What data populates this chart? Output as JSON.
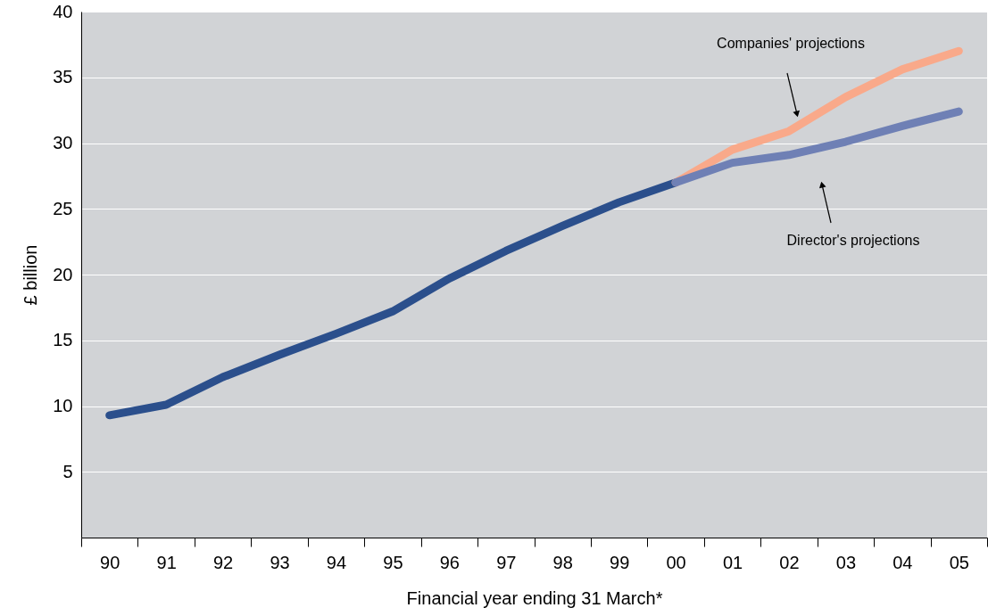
{
  "chart_data": {
    "type": "line",
    "xlabel": "Financial year ending 31 March*",
    "ylabel": "£ billion",
    "categories": [
      "90",
      "91",
      "92",
      "93",
      "94",
      "95",
      "96",
      "97",
      "98",
      "99",
      "00",
      "01",
      "02",
      "03",
      "04",
      "05"
    ],
    "series": [
      {
        "color": "#2b4f8c",
        "values": [
          9.3,
          10.1,
          12.2,
          13.9,
          15.5,
          17.2,
          19.7,
          21.8,
          23.7,
          25.5,
          27.0,
          null,
          null,
          null,
          null,
          null
        ]
      },
      {
        "color": "#f9a98a",
        "values": [
          null,
          null,
          null,
          null,
          null,
          null,
          null,
          null,
          null,
          null,
          27.0,
          29.5,
          30.9,
          33.5,
          35.6,
          37.0
        ]
      },
      {
        "color": "#6f80b5",
        "values": [
          null,
          null,
          null,
          null,
          null,
          null,
          null,
          null,
          null,
          null,
          27.0,
          28.5,
          29.1,
          30.1,
          31.3,
          32.4
        ]
      }
    ],
    "ylim": [
      0,
      40
    ],
    "yticks": [
      5,
      10,
      15,
      20,
      25,
      30,
      35,
      40
    ],
    "grid": "y",
    "line_style": "solid",
    "annotations": [
      "Companies' projections",
      "Director's projections"
    ]
  }
}
